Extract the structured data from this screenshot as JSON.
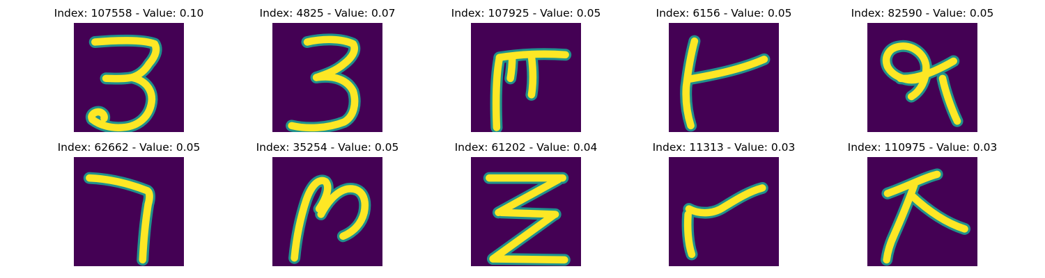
{
  "figure": {
    "colors": {
      "background": "#440154",
      "stroke_edge": "#21918c",
      "stroke_core": "#fde725"
    },
    "panels": [
      {
        "title": "Index: 107558 - Value: 0.10",
        "glyph": "digit-3-icon"
      },
      {
        "title": "Index: 4825 - Value: 0.07",
        "glyph": "digit-3-bold-icon"
      },
      {
        "title": "Index: 107925 - Value: 0.05",
        "glyph": "pi-shape-icon"
      },
      {
        "title": "Index: 6156 - Value: 0.05",
        "glyph": "slanted-t-icon"
      },
      {
        "title": "Index: 82590 - Value: 0.05",
        "glyph": "looped-q-icon"
      },
      {
        "title": "Index: 62662 - Value: 0.05",
        "glyph": "digit-7-icon"
      },
      {
        "title": "Index: 35254 - Value: 0.05",
        "glyph": "letter-n-icon"
      },
      {
        "title": "Index: 61202 - Value: 0.04",
        "glyph": "zigzag-z-icon"
      },
      {
        "title": "Index: 11313 - Value: 0.03",
        "glyph": "letter-r-icon"
      },
      {
        "title": "Index: 110975 - Value: 0.03",
        "glyph": "letter-k-icon"
      }
    ]
  }
}
